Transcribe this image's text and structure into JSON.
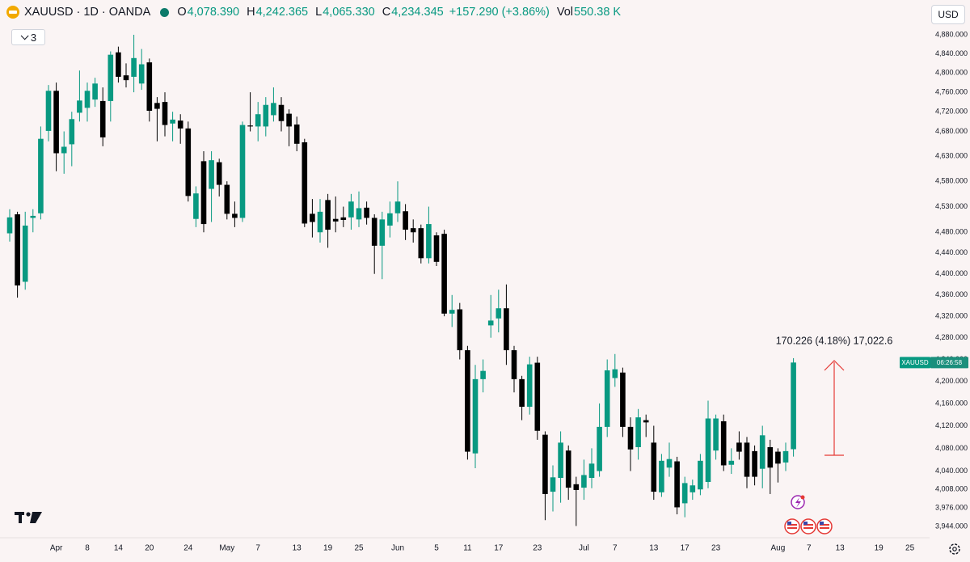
{
  "header": {
    "symbol": "XAUUSD · 1D · OANDA",
    "ohlc": [
      {
        "label": "O",
        "value": "4,078.390"
      },
      {
        "label": "H",
        "value": "4,242.365"
      },
      {
        "label": "L",
        "value": "4,065.330"
      },
      {
        "label": "C",
        "value": "4,234.345"
      }
    ],
    "change": "+157.290 (+3.86%)",
    "volume_label": "Vol",
    "volume": "550.38 K"
  },
  "indicators_count": "3",
  "currency": "USD",
  "price_tag": {
    "symbol": "XAUUSD",
    "countdown": "06:26:58"
  },
  "measurement": "170.226 (4.18%) 17,022.6",
  "chart_data": {
    "type": "candlestick",
    "categories": [
      null,
      null,
      null,
      null,
      null,
      null,
      "Apr",
      null,
      null,
      null,
      "8",
      null,
      null,
      null,
      "14",
      null,
      null,
      null,
      "20",
      null,
      null,
      null,
      null,
      "24",
      null,
      null,
      null,
      null,
      "May",
      null,
      null,
      null,
      "7",
      null,
      null,
      null,
      null,
      "13",
      null,
      null,
      null,
      "19",
      null,
      null,
      null,
      "25",
      null,
      null,
      null,
      null,
      "Jun",
      null,
      null,
      null,
      null,
      "5",
      null,
      null,
      null,
      "11",
      null,
      null,
      null,
      "17",
      null,
      null,
      null,
      null,
      "23",
      null,
      null,
      null,
      null,
      null,
      "Jul",
      null,
      null,
      null,
      "7",
      null,
      null,
      null,
      null,
      "13",
      null,
      null,
      null,
      "17",
      null,
      null,
      null,
      "23",
      null,
      null,
      null,
      null,
      null,
      null,
      null,
      "Aug",
      null,
      null,
      null,
      "7",
      null,
      null,
      null,
      "13",
      null,
      null,
      null,
      null,
      "19",
      null,
      null,
      null,
      "25",
      null
    ],
    "open": [
      4478,
      4515,
      4385,
      4508,
      4517,
      4681,
      4763,
      4636,
      4654,
      4718,
      4728,
      4745,
      4742,
      4742,
      4843,
      4795,
      4792,
      4778,
      4822,
      4738,
      4740,
      4696,
      4702,
      4686,
      4506,
      4620,
      4565,
      4618,
      4573,
      4516,
      4508,
      4692,
      4690,
      4690,
      4713,
      4734,
      4716,
      4694,
      4658,
      4516,
      4480,
      4543,
      4506,
      4509,
      4509,
      4505,
      4528,
      4508,
      4454,
      4493,
      4517,
      4521,
      4488,
      4488,
      4430,
      4474,
      4477,
      4325,
      4333,
      4257,
      4071,
      4204,
      4303,
      4316,
      4335,
      4257,
      4204,
      4154,
      4234,
      4104,
      4004,
      4028,
      4076,
      4017,
      4011,
      4028,
      4040,
      4118,
      4206,
      4216,
      4118,
      4082,
      4130,
      4090,
      4003,
      4046,
      4057,
      3984,
      4003,
      4008,
      4021,
      4076,
      4128,
      4051,
      4090,
      4090,
      4075,
      4044,
      4082,
      4074,
      4055,
      4078.39,
      null,
      null,
      null,
      null,
      null,
      null,
      null,
      null,
      null,
      null,
      null,
      null,
      null,
      null,
      null,
      null
    ],
    "high": [
      4525,
      4520,
      4520,
      4525,
      4690,
      4775,
      4780,
      4680,
      4720,
      4805,
      4780,
      4790,
      4770,
      4845,
      4855,
      4820,
      4880,
      4850,
      4830,
      4750,
      4760,
      4720,
      4715,
      4700,
      4570,
      4640,
      4640,
      4625,
      4580,
      4540,
      4700,
      4760,
      4740,
      4750,
      4770,
      4750,
      4725,
      4710,
      4665,
      4545,
      4545,
      4555,
      4550,
      4530,
      4555,
      4560,
      4540,
      4515,
      4520,
      4540,
      4580,
      4535,
      4505,
      4495,
      4530,
      4480,
      4485,
      4360,
      4345,
      4265,
      4230,
      4240,
      4360,
      4370,
      4380,
      4265,
      4210,
      4245,
      4245,
      4110,
      4050,
      4110,
      4085,
      4030,
      4060,
      4080,
      4160,
      4240,
      4250,
      4225,
      4135,
      4150,
      4140,
      4120,
      4070,
      4090,
      4065,
      4030,
      4025,
      4070,
      4165,
      4140,
      4140,
      4080,
      4110,
      4100,
      4085,
      4120,
      4095,
      4080,
      4090,
      4242.365,
      null,
      null,
      null,
      null,
      null,
      null,
      null,
      null,
      null,
      null,
      null,
      null,
      null,
      null,
      null,
      null
    ],
    "low": [
      4462,
      4355,
      4370,
      4480,
      4505,
      4660,
      4600,
      4595,
      4610,
      4700,
      4700,
      4730,
      4650,
      4700,
      4780,
      4770,
      4760,
      4765,
      4700,
      4660,
      4670,
      4660,
      4655,
      4540,
      4490,
      4480,
      4500,
      4550,
      4505,
      4490,
      4500,
      4680,
      4660,
      4670,
      4700,
      4680,
      4650,
      4640,
      4490,
      4470,
      4460,
      4450,
      4480,
      4490,
      4485,
      4490,
      4495,
      4400,
      4390,
      4470,
      4500,
      4465,
      4460,
      4420,
      4420,
      4415,
      4320,
      4300,
      4240,
      4060,
      4045,
      4180,
      4280,
      4290,
      4230,
      4180,
      4130,
      4140,
      4095,
      3955,
      3970,
      3985,
      3990,
      3945,
      3990,
      4010,
      4030,
      4100,
      4190,
      4100,
      4040,
      4060,
      4100,
      3990,
      3995,
      4030,
      3965,
      3960,
      3990,
      3998,
      4010,
      4060,
      4040,
      4035,
      4060,
      4010,
      4015,
      4010,
      4000,
      4020,
      4040,
      4065.33,
      null,
      null,
      null,
      null,
      null,
      null,
      null,
      null,
      null,
      null,
      null,
      null,
      null,
      null,
      null,
      null
    ],
    "close": [
      4509,
      4378,
      4493,
      4512,
      4665,
      4763,
      4636,
      4649,
      4705,
      4743,
      4763,
      4778,
      4668,
      4838,
      4792,
      4785,
      4831,
      4818,
      4722,
      4726,
      4693,
      4704,
      4686,
      4551,
      4556,
      4496,
      4622,
      4573,
      4516,
      4508,
      4693,
      4690,
      4715,
      4734,
      4738,
      4701,
      4690,
      4655,
      4497,
      4500,
      4520,
      4485,
      4501,
      4504,
      4540,
      4527,
      4508,
      4454,
      4505,
      4517,
      4540,
      4485,
      4480,
      4430,
      4496,
      4423,
      4325,
      4332,
      4257,
      4074,
      4204,
      4219,
      4312,
      4335,
      4257,
      4204,
      4154,
      4231,
      4111,
      4000,
      4029,
      4090,
      4011,
      4007,
      4033,
      4053,
      4118,
      4220,
      4222,
      4118,
      4078,
      4135,
      4126,
      4004,
      4058,
      4061,
      3977,
      4019,
      4015,
      4058,
      4133,
      4133,
      4050,
      4058,
      4074,
      4030,
      4030,
      4103,
      4046,
      4053,
      4075,
      4234.345,
      null,
      null,
      null,
      null,
      null,
      null,
      null,
      null,
      null,
      null,
      null,
      null,
      null,
      null,
      null,
      null
    ],
    "up_color": "#089981",
    "down_color": "#000000",
    "ylim": [
      3925,
      4954
    ],
    "log_scale": true,
    "grid": false,
    "yticks": [
      {
        "value": 4880,
        "label": "4,880.000"
      },
      {
        "value": 4840,
        "label": "4,840.000"
      },
      {
        "value": 4800,
        "label": "4,800.000"
      },
      {
        "value": 4760,
        "label": "4,760.000"
      },
      {
        "value": 4720,
        "label": "4,720.000"
      },
      {
        "value": 4680,
        "label": "4,680.000"
      },
      {
        "value": 4630,
        "label": "4,630.000"
      },
      {
        "value": 4580,
        "label": "4,580.000"
      },
      {
        "value": 4530,
        "label": "4,530.000"
      },
      {
        "value": 4480,
        "label": "4,480.000"
      },
      {
        "value": 4440,
        "label": "4,440.000"
      },
      {
        "value": 4400,
        "label": "4,400.000"
      },
      {
        "value": 4360,
        "label": "4,360.000"
      },
      {
        "value": 4320,
        "label": "4,320.000"
      },
      {
        "value": 4280,
        "label": "4,280.000"
      },
      {
        "value": 4240,
        "label": "4,240.000"
      },
      {
        "value": 4200,
        "label": "4,200.000"
      },
      {
        "value": 4160,
        "label": "4,160.000"
      },
      {
        "value": 4120,
        "label": "4,120.000"
      },
      {
        "value": 4080,
        "label": "4,080.000"
      },
      {
        "value": 4040,
        "label": "4,040.000"
      },
      {
        "value": 4008,
        "label": "4,008.000"
      },
      {
        "value": 3976,
        "label": "3,976.000"
      },
      {
        "value": 3944,
        "label": "3,944.000"
      }
    ]
  }
}
